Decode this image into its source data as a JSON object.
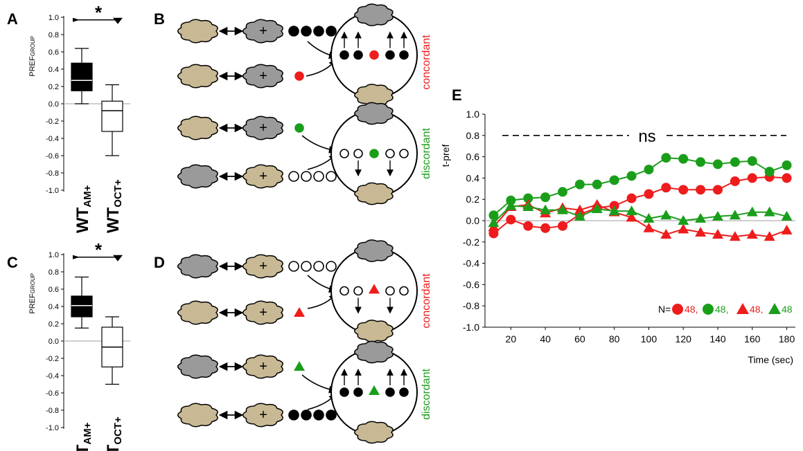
{
  "colors": {
    "red": "#ee1c1c",
    "green": "#1a9e1a",
    "gray_blob": "#9a9a9a",
    "tan_blob": "#c8b994",
    "baseline": "#b0b0b0"
  },
  "panel_labels": {
    "a": "A",
    "b": "B",
    "c": "C",
    "d": "D",
    "e": "E"
  },
  "box_panels": [
    {
      "id": "A",
      "ylabel": "PREF",
      "ylabel_sub": "GROUP",
      "significance": "*",
      "boxes": [
        {
          "name": "WT",
          "sub": "AM+",
          "fill": "black",
          "whisker_low": 0.0,
          "q1": 0.15,
          "median": 0.27,
          "q3": 0.47,
          "whisker_high": 0.64
        },
        {
          "name": "WT",
          "sub": "OCT+",
          "fill": "white",
          "whisker_low": -0.6,
          "q1": -0.32,
          "median": -0.08,
          "q3": 0.03,
          "whisker_high": 0.22
        }
      ]
    },
    {
      "id": "C",
      "ylabel": "PREF",
      "ylabel_sub": "GROUP",
      "significance": "*",
      "boxes": [
        {
          "name": "WT",
          "sub": "AM+",
          "fill": "black",
          "whisker_low": 0.15,
          "q1": 0.28,
          "median": 0.41,
          "q3": 0.52,
          "whisker_high": 0.74
        },
        {
          "name": "WT",
          "sub": "OCT+",
          "fill": "white",
          "whisker_low": -0.5,
          "q1": -0.3,
          "median": -0.07,
          "q3": 0.16,
          "whisker_high": 0.28
        }
      ]
    }
  ],
  "box_ticks": [
    "1.0",
    "0.8",
    "0.6",
    "0.4",
    "0.2",
    "0.0",
    "-0.2",
    "-0.4",
    "-0.6",
    "-0.8",
    "-1.0"
  ],
  "schematic_labels": {
    "concordant": "concordant",
    "discordant": "discordant",
    "plus": "+"
  },
  "chart_data": {
    "type": "line",
    "xlabel": "Time (sec)",
    "ylabel": "t-pref",
    "xlim": [
      5,
      185
    ],
    "ylim": [
      -1.0,
      1.0
    ],
    "xticks": [
      20,
      40,
      60,
      80,
      100,
      120,
      140,
      160,
      180
    ],
    "yticks": [
      -1.0,
      -0.8,
      -0.6,
      -0.4,
      -0.2,
      0.0,
      0.2,
      0.4,
      0.6,
      0.8,
      1.0
    ],
    "ns_label": "ns",
    "ns_y": 0.8,
    "n_label": "N=",
    "series": [
      {
        "marker": "circle",
        "color": "red",
        "n": "48",
        "x": [
          10,
          20,
          30,
          40,
          50,
          60,
          70,
          80,
          90,
          100,
          110,
          120,
          130,
          140,
          150,
          160,
          170,
          180
        ],
        "y": [
          -0.12,
          0.01,
          -0.05,
          -0.07,
          -0.05,
          0.06,
          0.12,
          0.14,
          0.21,
          0.25,
          0.31,
          0.29,
          0.29,
          0.29,
          0.37,
          0.4,
          0.41,
          0.4
        ]
      },
      {
        "marker": "circle",
        "color": "green",
        "n": "48",
        "x": [
          10,
          20,
          30,
          40,
          50,
          60,
          70,
          80,
          90,
          100,
          110,
          120,
          130,
          140,
          150,
          160,
          170,
          180
        ],
        "y": [
          0.05,
          0.19,
          0.21,
          0.22,
          0.27,
          0.34,
          0.34,
          0.38,
          0.42,
          0.48,
          0.59,
          0.58,
          0.55,
          0.53,
          0.55,
          0.56,
          0.46,
          0.52
        ]
      },
      {
        "marker": "triangle",
        "color": "red",
        "n": "48",
        "x": [
          10,
          20,
          30,
          40,
          50,
          60,
          70,
          80,
          90,
          100,
          110,
          120,
          130,
          140,
          150,
          160,
          170,
          180
        ],
        "y": [
          -0.06,
          0.13,
          0.15,
          0.07,
          0.12,
          0.1,
          0.15,
          0.08,
          0.03,
          -0.07,
          -0.13,
          -0.08,
          -0.11,
          -0.13,
          -0.15,
          -0.13,
          -0.15,
          -0.09
        ]
      },
      {
        "marker": "triangle",
        "color": "green",
        "n": "48",
        "x": [
          10,
          20,
          30,
          40,
          50,
          60,
          70,
          80,
          90,
          100,
          110,
          120,
          130,
          140,
          150,
          160,
          170,
          180
        ],
        "y": [
          -0.02,
          0.14,
          0.13,
          0.1,
          0.1,
          0.04,
          0.11,
          0.09,
          0.09,
          0.02,
          0.05,
          0.0,
          0.02,
          0.04,
          0.05,
          0.08,
          0.08,
          0.04
        ]
      }
    ]
  }
}
